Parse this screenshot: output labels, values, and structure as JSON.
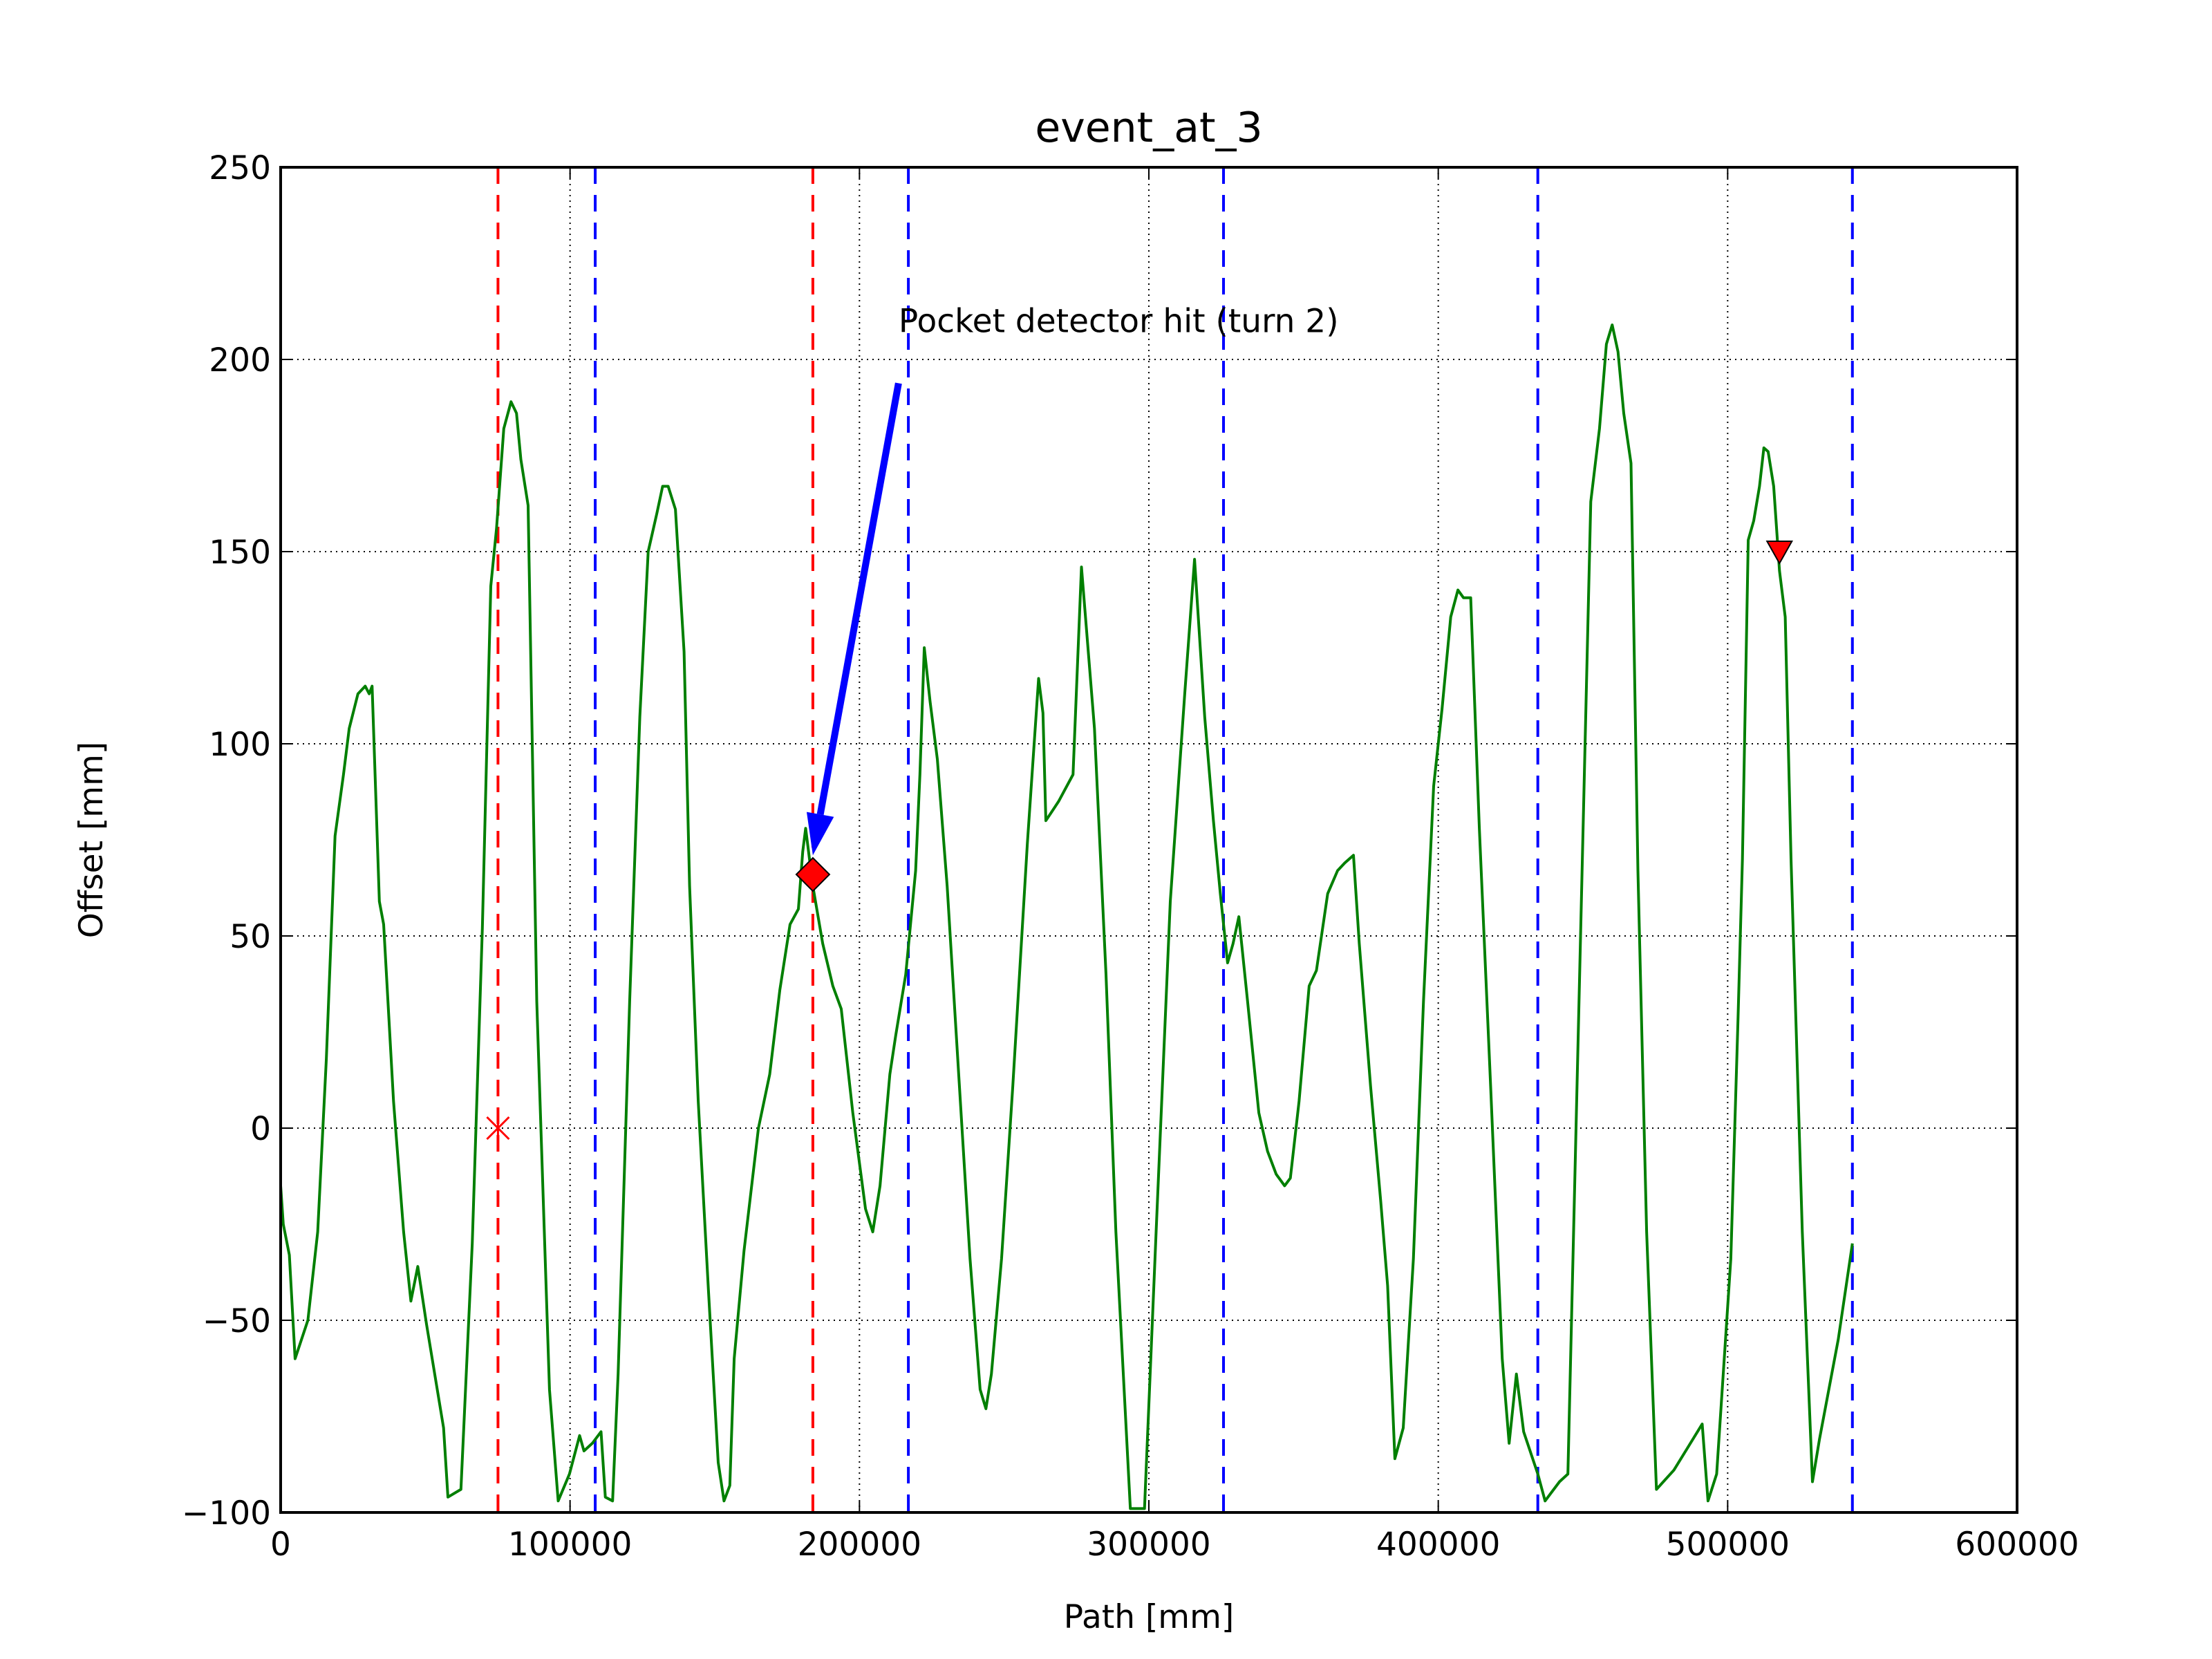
{
  "chart_data": {
    "type": "line",
    "title": "event_at_3",
    "xlabel": "Path [mm]",
    "ylabel": "Offset [mm]",
    "xlim": [
      0,
      600000
    ],
    "ylim": [
      -100,
      250
    ],
    "xticks": [
      0,
      100000,
      200000,
      300000,
      400000,
      500000,
      600000
    ],
    "yticks": [
      {
        "value": -100,
        "label": "−100"
      },
      {
        "value": -50,
        "label": "−50"
      },
      0,
      50,
      100,
      150,
      200,
      250
    ],
    "grid": true,
    "series": [
      {
        "color": "#007f00",
        "x": [
          0,
          900,
          3000,
          5000,
          9400,
          12800,
          15800,
          18800,
          21700,
          23700,
          26700,
          29200,
          30600,
          31600,
          34100,
          35600,
          39000,
          42500,
          45000,
          47400,
          50400,
          56300,
          57800,
          62300,
          66200,
          69700,
          72600,
          74600,
          77100,
          79600,
          81500,
          83000,
          85500,
          88500,
          92900,
          95900,
          99800,
          103300,
          104800,
          107700,
          110700,
          112200,
          114700,
          116600,
          120600,
          124100,
          127000,
          130000,
          132000,
          133900,
          136400,
          139400,
          141300,
          144300,
          147800,
          151200,
          153200,
          155200,
          156700,
          160100,
          165100,
          169000,
          172500,
          176000,
          178900,
          180400,
          181400,
          183900,
          187300,
          190800,
          193700,
          197700,
          202100,
          204600,
          207100,
          210500,
          212500,
          216000,
          219400,
          220900,
          222400,
          224400,
          226900,
          230300,
          234300,
          238200,
          241700,
          243700,
          245600,
          249100,
          253000,
          258000,
          261900,
          263400,
          264400,
          268800,
          273800,
          276700,
          281200,
          285200,
          288600,
          293600,
          298500,
          302500,
          307400,
          312400,
          315800,
          319300,
          322300,
          324700,
          327200,
          329100,
          331100,
          334100,
          338000,
          341000,
          344000,
          346900,
          348900,
          351900,
          355400,
          357900,
          361800,
          365200,
          367700,
          370700,
          372700,
          376600,
          380100,
          382500,
          385000,
          387900,
          391400,
          394900,
          398400,
          401300,
          404300,
          406800,
          408700,
          411200,
          414200,
          418100,
          422100,
          424500,
          427000,
          429500,
          434400,
          436900,
          441900,
          444800,
          452700,
          455700,
          458100,
          460100,
          462100,
          464100,
          466600,
          469000,
          472000,
          475400,
          481400,
          486300,
          491200,
          493200,
          496200,
          501100,
          503600,
          505100,
          507100,
          509000,
          511000,
          512500,
          514000,
          515900,
          517900,
          519900,
          521900,
          525800,
          529300,
          531700,
          538200,
          543100
        ],
        "y": [
          -15,
          -25,
          -33,
          -60,
          -50,
          -27,
          18,
          76,
          92,
          104,
          113,
          115,
          113,
          115,
          59,
          53,
          7,
          -27,
          -45,
          -36,
          -51,
          -78,
          -96,
          -94,
          -30,
          52,
          141,
          156,
          182,
          189,
          186,
          174,
          162,
          33,
          -68,
          -97,
          -90,
          -80,
          -84,
          -82,
          -79,
          -96,
          -97,
          -64,
          33,
          107,
          150,
          160,
          167,
          167,
          161,
          124,
          63,
          7,
          -42,
          -87,
          -97,
          -93,
          -60,
          -32,
          0,
          14,
          36,
          53,
          57,
          72,
          78,
          63,
          48,
          37,
          31,
          4,
          -21,
          -27,
          -15,
          14,
          24,
          40,
          67,
          92,
          125,
          111,
          96,
          63,
          14,
          -34,
          -68,
          -73,
          -64,
          -34,
          11,
          74,
          117,
          108,
          80,
          85,
          92,
          146,
          104,
          40,
          -27,
          -99,
          -99,
          -27,
          59,
          113,
          148,
          107,
          80,
          61,
          43,
          48,
          55,
          33,
          4,
          -6,
          -12,
          -15,
          -13,
          7,
          37,
          41,
          61,
          67,
          69,
          71,
          48,
          11,
          -19,
          -41,
          -86,
          -78,
          -34,
          33,
          89,
          109,
          133,
          140,
          138,
          138,
          78,
          11,
          -60,
          -82,
          -64,
          -79,
          -90,
          -97,
          -92,
          -90,
          163,
          182,
          204,
          209,
          202,
          186,
          173,
          67,
          -27,
          -94,
          -89,
          -83,
          -77,
          -97,
          -90,
          -34,
          29,
          70,
          153,
          158,
          167,
          177,
          176,
          167,
          145,
          133,
          70,
          -27,
          -92,
          -81,
          -55,
          -30
        ]
      }
    ],
    "vlines": [
      {
        "x": 75100,
        "color": "#ff0000"
      },
      {
        "x": 183900,
        "color": "#ff0000"
      },
      {
        "x": 108700,
        "color": "#0000ff"
      },
      {
        "x": 216900,
        "color": "#0000ff"
      },
      {
        "x": 325800,
        "color": "#0000ff"
      },
      {
        "x": 434400,
        "color": "#0000ff"
      },
      {
        "x": 543100,
        "color": "#0000ff"
      }
    ],
    "markers": [
      {
        "x": 75100,
        "y": 0,
        "shape": "x",
        "color": "#ff0000"
      },
      {
        "x": 183900,
        "y": 66,
        "shape": "diamond",
        "color": "#ff0000"
      },
      {
        "x": 517900,
        "y": 150,
        "shape": "triangle-down",
        "color": "#ff0000"
      }
    ],
    "annotation": {
      "text": "Pocket detector hit (turn 2)",
      "xytext": [
        213500,
        210
      ],
      "xy": [
        183900,
        71
      ],
      "color": "#0000ff"
    }
  }
}
